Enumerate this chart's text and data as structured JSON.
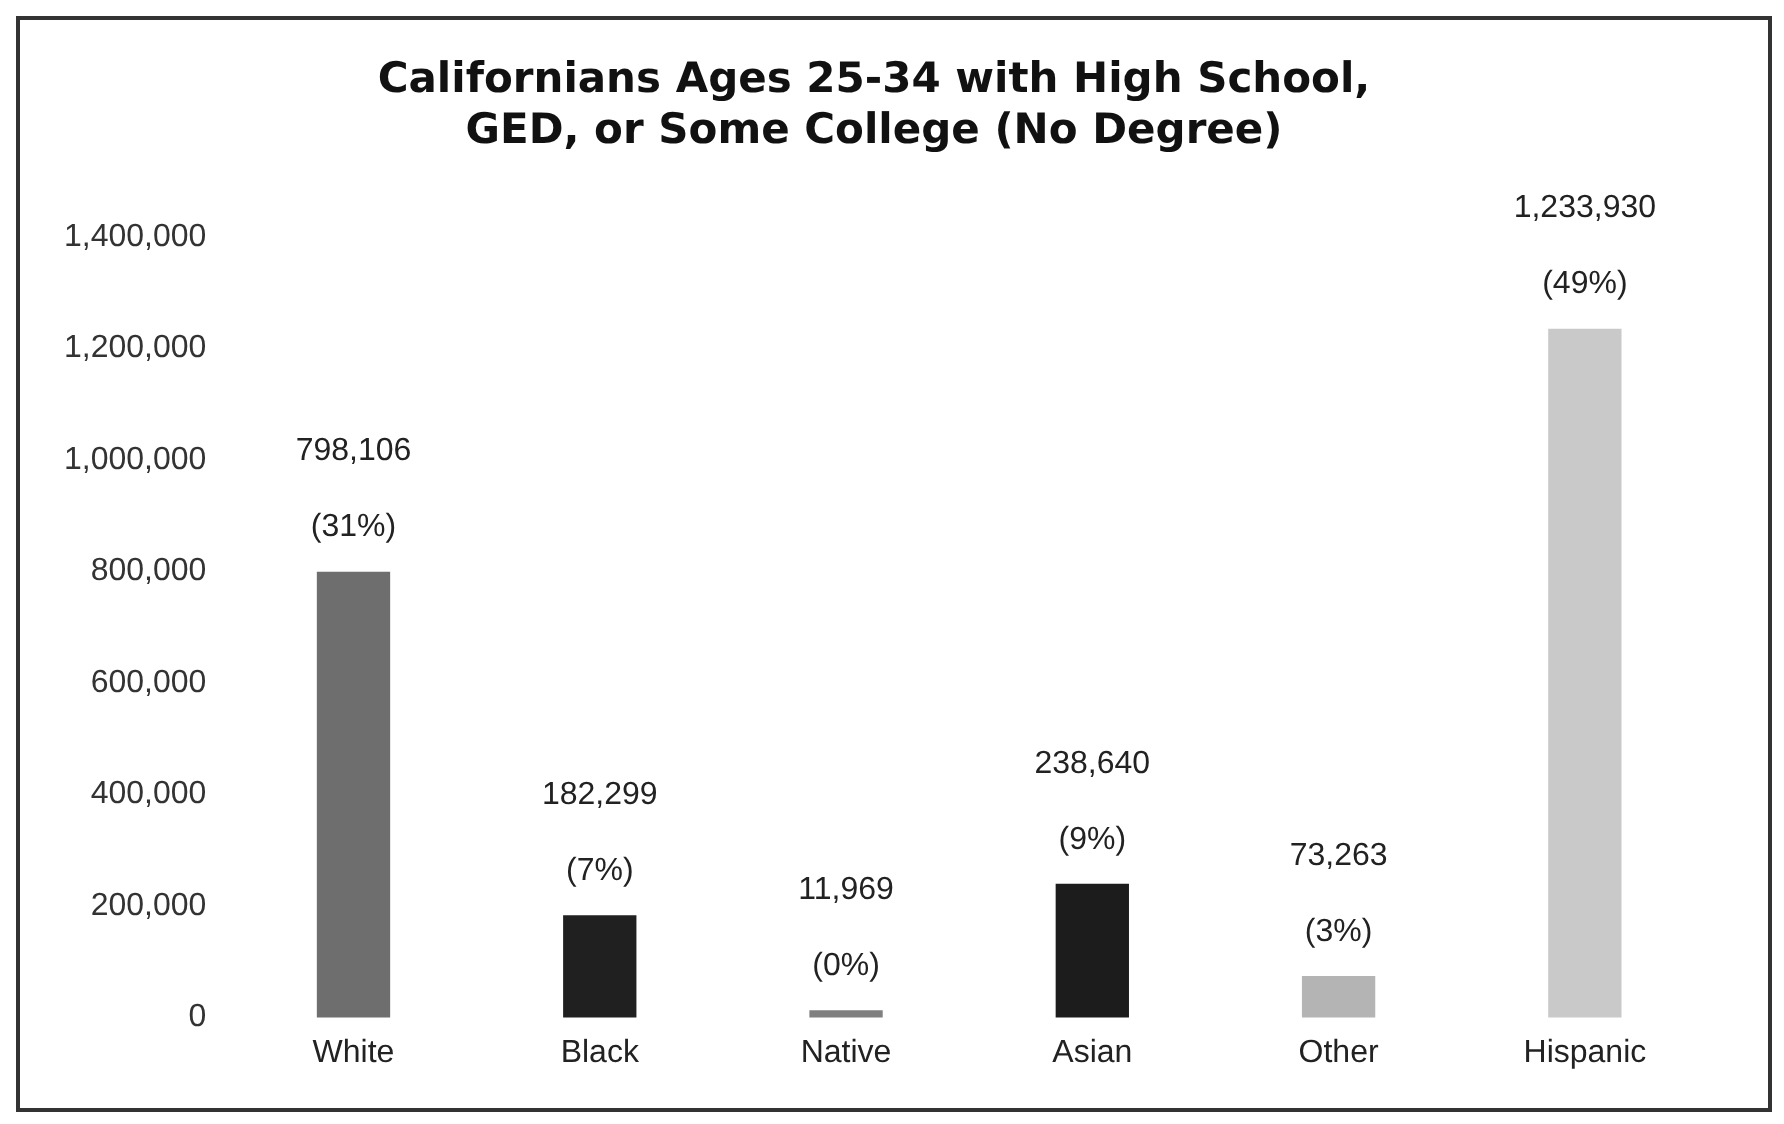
{
  "chart_data": {
    "type": "bar",
    "title": "Californians Ages 25-34 with High School, GED, or Some College (No Degree)",
    "categories": [
      "White",
      "Black",
      "Native",
      "Asian",
      "Other",
      "Hispanic"
    ],
    "values": [
      798106,
      182299,
      11969,
      238640,
      73263,
      1233930
    ],
    "colors": [
      "#6e6e6e",
      "#202020",
      "#808080",
      "#1c1c1c",
      "#b4b4b4",
      "#c9c9c9"
    ],
    "value_labels": [
      "798,106 (31%)",
      "182,299 (7%)",
      "11,969 (0%)",
      "238,640 (9%)",
      "73,263 (3%)",
      "1,233,930 (49%)"
    ],
    "ylim": [
      0,
      1400000
    ],
    "yticks": [
      0,
      {
        "value": 200000,
        "label": "200,000"
      },
      {
        "value": 400000,
        "label": "400,000"
      },
      {
        "value": 600000,
        "label": "600,000"
      },
      {
        "value": 800000,
        "label": "800,000"
      },
      {
        "value": 1000000,
        "label": "1,000,000"
      },
      {
        "value": 1200000,
        "label": "1,200,000"
      },
      {
        "value": 1400000,
        "label": "1,400,000"
      }
    ],
    "grid": false,
    "legend": false
  }
}
